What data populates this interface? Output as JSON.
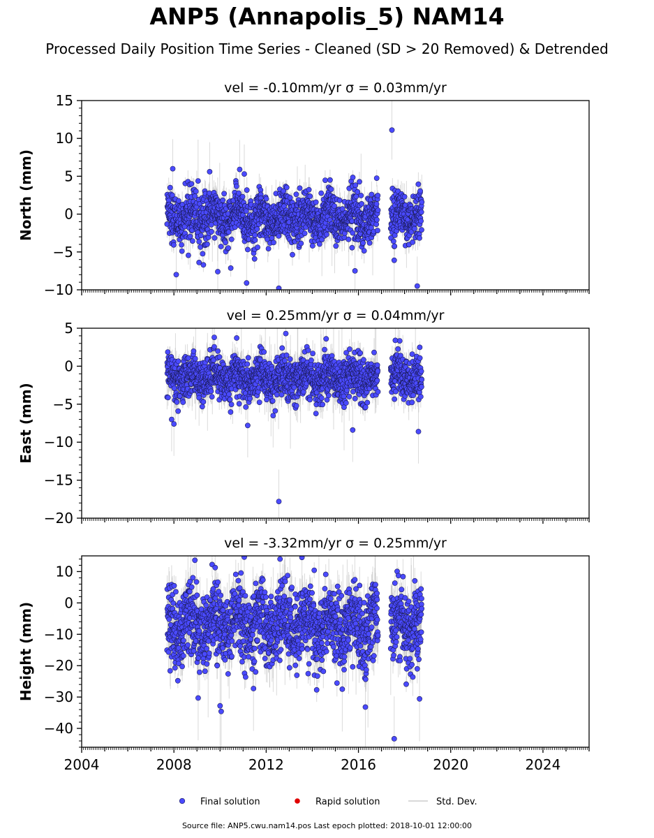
{
  "title": "ANP5 (Annapolis_5) NAM14",
  "subtitle": "Processed Daily Position Time Series - Cleaned (SD > 20 Removed) & Detrended",
  "footer": "Source file: ANP5.cwu.nam14.pos  Last epoch plotted: 2018-10-01 12:00:00",
  "legend": {
    "placement": "bottom-center",
    "items": [
      {
        "label": "Final solution",
        "color": "#4a4aff"
      },
      {
        "label": "Rapid solution",
        "color": "#e00000"
      },
      {
        "label": "Std. Dev.",
        "color": "#cccccc"
      }
    ]
  },
  "colors": {
    "final": "#4a4aff",
    "rapid": "#e00000",
    "stddev": "#bbbbbb",
    "marker_edge": "#1a1a55"
  },
  "chart_data": [
    {
      "type": "scatter",
      "title": "vel = -0.10mm/yr   σ = 0.03mm/yr",
      "ylabel": "North (mm)",
      "xlim": [
        2004,
        2026
      ],
      "ylim": [
        -10,
        15
      ],
      "yticks": [
        -10,
        -5,
        0,
        5,
        10,
        15
      ],
      "xticks": [
        2004,
        2008,
        2012,
        2016,
        2020,
        2024
      ],
      "spans": [
        [
          2007.7,
          2016.85
        ],
        [
          2017.4,
          2018.75
        ]
      ],
      "level": -0.5,
      "spread": 1.6,
      "sd": 1.3,
      "outliers": [
        [
          2007.95,
          6.0
        ],
        [
          2009.55,
          5.6
        ],
        [
          2010.85,
          5.9
        ],
        [
          2011.05,
          5.3
        ],
        [
          2017.45,
          11.1
        ],
        [
          2011.15,
          -9.1
        ],
        [
          2012.55,
          -9.8
        ],
        [
          2018.55,
          -9.5
        ],
        [
          2008.1,
          -8.0
        ],
        [
          2009.9,
          -7.6
        ],
        [
          2015.85,
          -7.5
        ],
        [
          2017.55,
          -6.1
        ]
      ]
    },
    {
      "type": "scatter",
      "title": "vel = 0.25mm/yr   σ = 0.04mm/yr",
      "ylabel": "East (mm)",
      "xlim": [
        2004,
        2026
      ],
      "ylim": [
        -20,
        5
      ],
      "yticks": [
        -20,
        -15,
        -10,
        -5,
        0,
        5
      ],
      "xticks": [
        2004,
        2008,
        2012,
        2016,
        2020,
        2024
      ],
      "spans": [
        [
          2007.7,
          2016.85
        ],
        [
          2017.4,
          2018.75
        ]
      ],
      "level": -1.5,
      "spread": 1.4,
      "sd": 1.4,
      "outliers": [
        [
          2012.55,
          -17.8
        ],
        [
          2011.2,
          -7.8
        ],
        [
          2012.3,
          -6.5
        ],
        [
          2015.75,
          -8.4
        ],
        [
          2018.6,
          -8.6
        ],
        [
          2008.0,
          -7.6
        ],
        [
          2007.9,
          -7.0
        ],
        [
          2012.85,
          4.3
        ],
        [
          2014.6,
          3.6
        ],
        [
          2017.6,
          3.4
        ],
        [
          2009.75,
          3.8
        ]
      ]
    },
    {
      "type": "scatter",
      "title": "vel = -3.32mm/yr   σ = 0.25mm/yr",
      "ylabel": "Height (mm)",
      "xlim": [
        2004,
        2026
      ],
      "ylim": [
        -46,
        15
      ],
      "yticks": [
        -40,
        -30,
        -20,
        -10,
        0,
        10
      ],
      "xticks": [
        2004,
        2008,
        2012,
        2016,
        2020,
        2024
      ],
      "xticklabels": [
        "2004",
        "2008",
        "2012",
        "2016",
        "2020",
        "2024"
      ],
      "spans": [
        [
          2007.7,
          2016.85
        ],
        [
          2017.4,
          2018.75
        ]
      ],
      "level": -7.0,
      "spread": 6.0,
      "sd": 4.5,
      "outliers": [
        [
          2017.55,
          -43.3
        ],
        [
          2010.05,
          -34.6
        ],
        [
          2010.0,
          -32.8
        ],
        [
          2016.3,
          -33.2
        ],
        [
          2011.05,
          14.6
        ],
        [
          2013.55,
          14.5
        ],
        [
          2012.6,
          14.0
        ],
        [
          2018.65,
          -30.6
        ],
        [
          2009.05,
          -30.3
        ],
        [
          2011.45,
          -27.3
        ],
        [
          2015.3,
          -27.5
        ]
      ]
    }
  ]
}
